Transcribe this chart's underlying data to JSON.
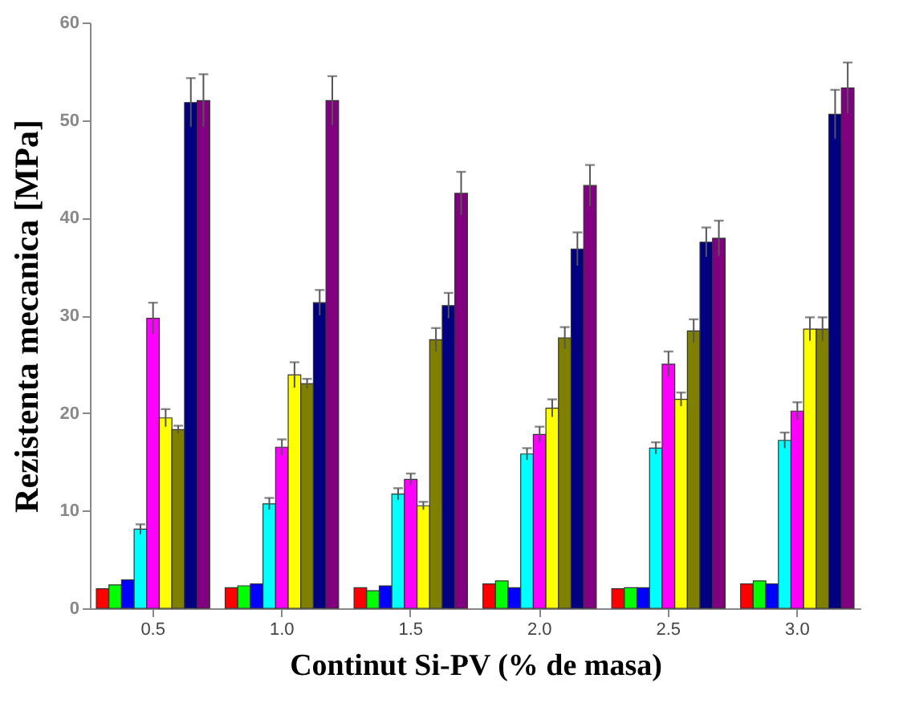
{
  "chart_data": {
    "type": "bar",
    "xlabel": "Continut Si-PV (% de masa)",
    "ylabel": "Rezistenta mecanica [MPa]",
    "categories": [
      "0.5",
      "1.0",
      "1.5",
      "2.0",
      "2.5",
      "3.0"
    ],
    "ylim": [
      0,
      60
    ],
    "yticks": [
      0,
      10,
      20,
      30,
      40,
      50,
      60
    ],
    "grid": false,
    "series": [
      {
        "color": "#ff0000",
        "values": [
          2.0,
          2.1,
          2.1,
          2.5,
          2.0,
          2.5
        ]
      },
      {
        "color": "#00ff00",
        "values": [
          2.4,
          2.3,
          1.8,
          2.8,
          2.1,
          2.8
        ]
      },
      {
        "color": "#0000ff",
        "values": [
          2.9,
          2.5,
          2.3,
          2.1,
          2.1,
          2.5
        ]
      },
      {
        "color": "#00ffff",
        "values": [
          8.1,
          10.7,
          11.7,
          15.8,
          16.4,
          17.2
        ],
        "errors": [
          0.5,
          0.6,
          0.6,
          0.6,
          0.6,
          0.8
        ]
      },
      {
        "color": "#ff00ff",
        "values": [
          29.7,
          16.5,
          13.2,
          17.8,
          25.0,
          20.2
        ],
        "errors": [
          1.6,
          0.8,
          0.6,
          0.8,
          1.3,
          0.9
        ]
      },
      {
        "color": "#ffff00",
        "values": [
          19.5,
          23.9,
          10.5,
          20.5,
          21.4,
          28.6
        ],
        "errors": [
          0.9,
          1.3,
          0.4,
          0.9,
          0.7,
          1.2
        ]
      },
      {
        "color": "#808000",
        "values": [
          18.3,
          23.0,
          27.5,
          27.7,
          28.4,
          28.6
        ],
        "errors": [
          0.4,
          0.5,
          1.2,
          1.1,
          1.2,
          1.2
        ]
      },
      {
        "color": "#000080",
        "values": [
          51.8,
          31.3,
          31.0,
          36.8,
          37.5,
          50.6
        ],
        "errors": [
          2.5,
          1.3,
          1.3,
          1.7,
          1.5,
          2.5
        ]
      },
      {
        "color": "#800080",
        "values": [
          52.0,
          52.0,
          42.5,
          43.3,
          37.9,
          53.3
        ],
        "errors": [
          2.7,
          2.5,
          2.2,
          2.1,
          1.8,
          2.6
        ]
      }
    ]
  }
}
